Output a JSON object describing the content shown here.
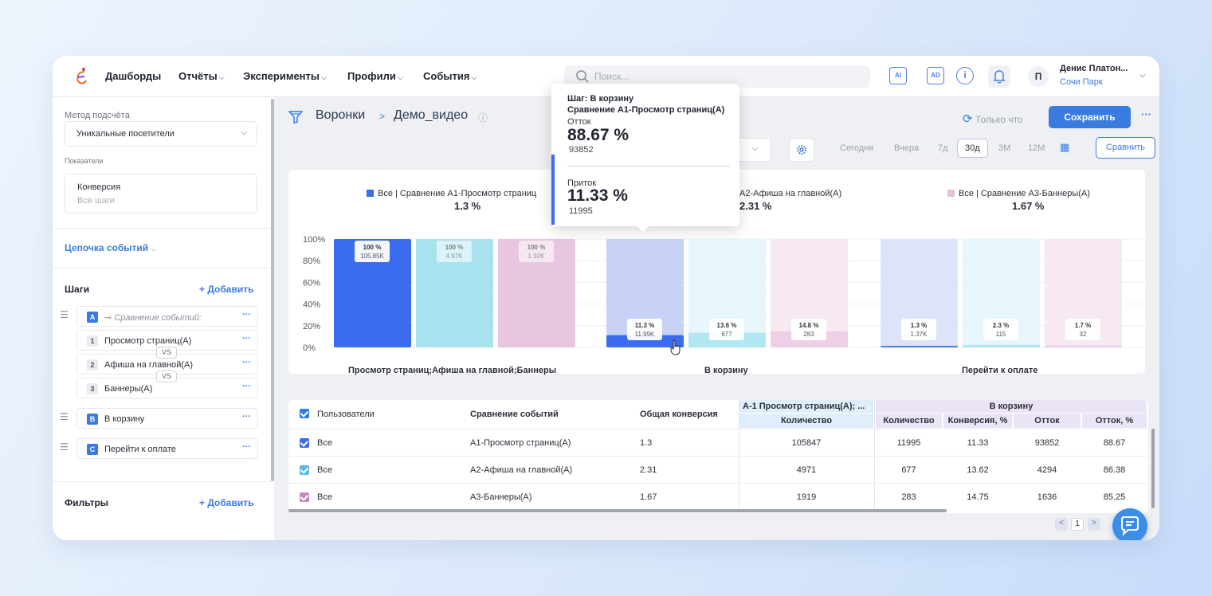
{
  "nav": {
    "items": [
      "Дашборды",
      "Отчёты",
      "Эксперименты",
      "Профили",
      "События"
    ],
    "search_placeholder": "Поиск...",
    "icon_ai": "AI",
    "icon_ad": "AD",
    "avatar_letter": "П",
    "user_name": "Денис Платон...",
    "user_org": "Сочи Парк"
  },
  "sidebar": {
    "method_label": "Метод подсчёта",
    "method_value": "Уникальные посетители",
    "indicators_label": "Показатели",
    "indicator_title": "Конверсия",
    "indicator_sub": "Все шаги",
    "chain_link": "Цепочка событий",
    "steps_title": "Шаги",
    "add_label": "+ Добавить",
    "step_a": {
      "badge": "A",
      "label": "Сравнение событий:"
    },
    "sub_steps": [
      {
        "badge": "1",
        "label": "Просмотр страниц(А)"
      },
      {
        "badge": "2",
        "label": "Афиша на главной(А)"
      },
      {
        "badge": "3",
        "label": "Баннеры(А)"
      }
    ],
    "vs": "VS",
    "step_b": {
      "badge": "B",
      "label": "В корзину"
    },
    "step_c": {
      "badge": "C",
      "label": "Перейти к оплате"
    },
    "filters_title": "Фильтры",
    "dots": "···"
  },
  "header": {
    "crumb_root": "Воронки",
    "crumb_sep": ">",
    "crumb_page": "Демо_видео",
    "only_now": "Только что",
    "save": "Сохранить",
    "more": "···",
    "periods": [
      "Сегодня",
      "Вчера",
      "7д",
      "30д",
      "3М",
      "12М"
    ],
    "active_period": "30д",
    "compare": "Сравнить"
  },
  "chart_data": {
    "type": "bar",
    "legend": [
      {
        "name": "Все | Сравнение А1-Просмотр страниц(А)",
        "value": "1.3 %",
        "color": "#3b6cf0"
      },
      {
        "name": "А2-Афиша на главной(А)",
        "value": "2.31 %",
        "color": "#a7e3f0"
      },
      {
        "name": "Все | Сравнение А3-Баннеры(А)",
        "value": "1.67 %",
        "color": "#e8c8e0"
      }
    ],
    "legend_left_visible": "Все | Сравнение А1-Просмотр страниц",
    "y_ticks": [
      "100%",
      "80%",
      "60%",
      "40%",
      "20%",
      "0%"
    ],
    "ylim": [
      0,
      100
    ],
    "groups": [
      {
        "label": "Просмотр страниц;Афиша на главной;Баннеры",
        "values": [
          100,
          100,
          100
        ],
        "pct_labels": [
          "100 %",
          "100 %",
          "100 %"
        ],
        "count_labels": [
          "105.85K",
          "4.97K",
          "1.92K"
        ]
      },
      {
        "label": "В корзину",
        "values": [
          11.3,
          13.6,
          14.8
        ],
        "pct_labels": [
          "11.3 %",
          "13.6 %",
          "14.8 %"
        ],
        "count_labels": [
          "11.99K",
          "677",
          "283"
        ]
      },
      {
        "label": "Перейти к оплате",
        "values": [
          1.3,
          2.3,
          1.7
        ],
        "pct_labels": [
          "1.3 %",
          "2.3 %",
          "1.7 %"
        ],
        "count_labels": [
          "1.37K",
          "115",
          "32"
        ]
      }
    ]
  },
  "tooltip": {
    "step": "Шаг: В корзину",
    "comparison": "Сравнение А1-Просмотр страниц(А)",
    "outflow_label": "Отток",
    "outflow_pct": "88.67 %",
    "outflow_count": "93852",
    "inflow_label": "Приток",
    "inflow_pct": "11.33 %",
    "inflow_count": "11995"
  },
  "table": {
    "col_users": "Пользователи",
    "col_compare": "Сравнение событий",
    "col_conv": "Общая конверсия",
    "group1": "А-1 Просмотр страниц(А); ...",
    "group1_sub": "Количество",
    "group2": "В корзину",
    "group2_subs": [
      "Количество",
      "Конверсия, %",
      "Отток",
      "Отток, %"
    ],
    "rows": [
      {
        "user": "Все",
        "event": "А1-Просмотр страниц(А)",
        "conv": "1.3",
        "count1": "105847",
        "count2": "11995",
        "conv2": "11.33",
        "out": "93852",
        "outpct": "88.67",
        "color": "#3b6cf0"
      },
      {
        "user": "Все",
        "event": "А2-Афиша на главной(А)",
        "conv": "2.31",
        "count1": "4971",
        "count2": "677",
        "conv2": "13.62",
        "out": "4294",
        "outpct": "86.38",
        "color": "#5bb8e8"
      },
      {
        "user": "Все",
        "event": "А3-Баннеры(А)",
        "conv": "1.67",
        "count1": "1919",
        "count2": "283",
        "conv2": "14.75",
        "out": "1636",
        "outpct": "85.25",
        "color": "#c48ac0"
      }
    ]
  },
  "pager": {
    "page": "1",
    "prev": "<",
    "next": ">"
  }
}
